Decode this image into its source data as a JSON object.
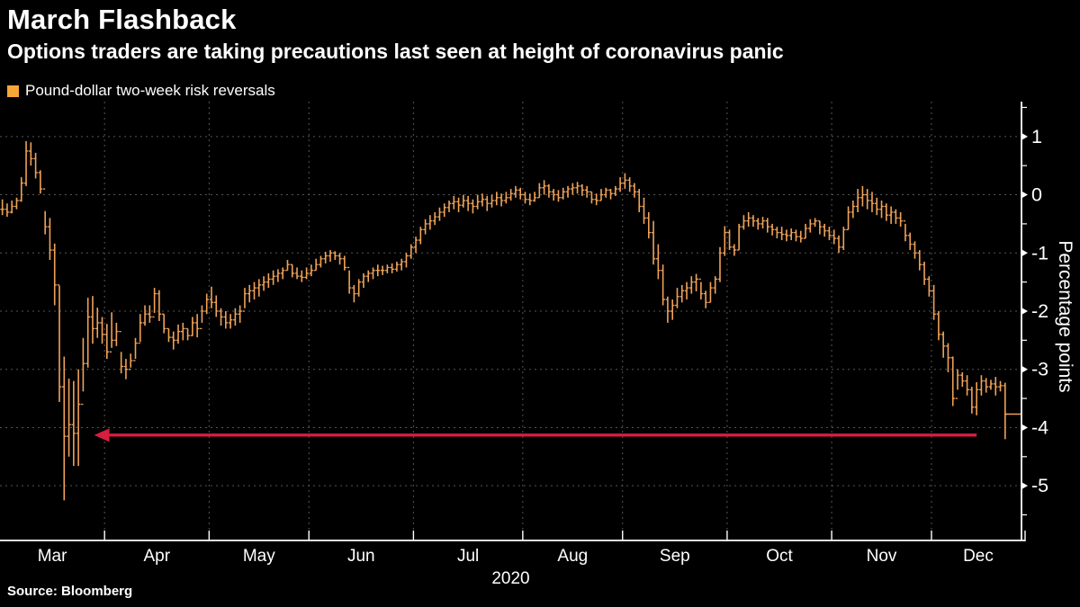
{
  "header": {
    "title": "March Flashback",
    "subtitle": "Options traders are taking precautions last seen at height of coronavirus panic"
  },
  "legend": {
    "label": "Pound-dollar two-week risk reversals",
    "swatch_color": "#f5a738"
  },
  "source": "Source: Bloomberg",
  "chart_data": {
    "type": "ohlc_bar",
    "title": "March Flashback",
    "series_name": "Pound-dollar two-week risk reversals",
    "series_color": "#f0a258",
    "background_color": "#000000",
    "grid_color": "#555555",
    "axis_color": "#ffffff",
    "x_axis": {
      "months": [
        "Mar",
        "Apr",
        "May",
        "Jun",
        "Jul",
        "Aug",
        "Sep",
        "Oct",
        "Nov",
        "Dec"
      ],
      "year_label": "2020",
      "month_start_indices": [
        0,
        22,
        44,
        65,
        87,
        110,
        131,
        153,
        175,
        196
      ],
      "axis_end_index": 215.7
    },
    "y_axis": {
      "label": "Percentage points",
      "major_ticks": [
        1,
        0,
        -1,
        -2,
        -3,
        -4,
        -5
      ],
      "minor_tick_step": 0.5,
      "top_value": 1.6,
      "bottom_value": -5.94
    },
    "annotation_arrow": {
      "color": "#d81e3f",
      "value": -4.13,
      "from_index": 205,
      "tip_index": 19.3
    },
    "last_value_line": {
      "value": -3.77
    },
    "bars_format": [
      "high",
      "low",
      "close"
    ],
    "bars": [
      [
        -0.08,
        -0.35,
        -0.25
      ],
      [
        -0.15,
        -0.38,
        -0.3
      ],
      [
        -0.1,
        -0.32,
        -0.2
      ],
      [
        -0.05,
        -0.25,
        -0.1
      ],
      [
        0.3,
        -0.12,
        0.2
      ],
      [
        0.92,
        0.15,
        0.75
      ],
      [
        0.9,
        0.5,
        0.62
      ],
      [
        0.72,
        0.28,
        0.38
      ],
      [
        0.42,
        0.02,
        0.1
      ],
      [
        -0.28,
        -0.68,
        -0.55
      ],
      [
        -0.4,
        -1.12,
        -0.95
      ],
      [
        -0.84,
        -1.9,
        -1.55
      ],
      [
        -1.56,
        -3.56,
        -3.3
      ],
      [
        -2.78,
        -5.25,
        -4.15
      ],
      [
        -3.16,
        -4.5,
        -3.95
      ],
      [
        -3.2,
        -4.66,
        -4.1
      ],
      [
        -3.0,
        -4.66,
        -3.6
      ],
      [
        -2.46,
        -3.38,
        -2.9
      ],
      [
        -1.77,
        -2.97,
        -2.1
      ],
      [
        -1.74,
        -2.56,
        -2.3
      ],
      [
        -1.94,
        -2.46,
        -2.2
      ],
      [
        -2.1,
        -2.56,
        -2.4
      ],
      [
        -2.22,
        -2.82,
        -2.7
      ],
      [
        -2.02,
        -2.63,
        -2.5
      ],
      [
        -2.2,
        -2.6,
        -2.35
      ],
      [
        -2.7,
        -3.07,
        -2.95
      ],
      [
        -2.82,
        -3.17,
        -3.0
      ],
      [
        -2.73,
        -2.97,
        -2.85
      ],
      [
        -2.46,
        -2.82,
        -2.55
      ],
      [
        -2.05,
        -2.53,
        -2.2
      ],
      [
        -1.9,
        -2.25,
        -2.05
      ],
      [
        -1.9,
        -2.2,
        -2.1
      ],
      [
        -1.6,
        -2.03,
        -1.7
      ],
      [
        -1.64,
        -2.17,
        -2.05
      ],
      [
        -2.05,
        -2.38,
        -2.3
      ],
      [
        -2.3,
        -2.53,
        -2.45
      ],
      [
        -2.35,
        -2.66,
        -2.5
      ],
      [
        -2.23,
        -2.56,
        -2.35
      ],
      [
        -2.2,
        -2.5,
        -2.3
      ],
      [
        -2.3,
        -2.5,
        -2.42
      ],
      [
        -2.1,
        -2.43,
        -2.2
      ],
      [
        -2.05,
        -2.45,
        -2.3
      ],
      [
        -1.9,
        -2.2,
        -2.0
      ],
      [
        -1.7,
        -2.05,
        -1.8
      ],
      [
        -1.58,
        -1.95,
        -1.85
      ],
      [
        -1.73,
        -2.1,
        -2.0
      ],
      [
        -1.95,
        -2.25,
        -2.1
      ],
      [
        -2.0,
        -2.3,
        -2.2
      ],
      [
        -2.05,
        -2.3,
        -2.15
      ],
      [
        -1.95,
        -2.25,
        -2.05
      ],
      [
        -1.9,
        -2.2,
        -2.0
      ],
      [
        -1.6,
        -1.95,
        -1.7
      ],
      [
        -1.55,
        -1.85,
        -1.65
      ],
      [
        -1.5,
        -1.8,
        -1.6
      ],
      [
        -1.45,
        -1.75,
        -1.55
      ],
      [
        -1.4,
        -1.65,
        -1.5
      ],
      [
        -1.35,
        -1.6,
        -1.45
      ],
      [
        -1.3,
        -1.55,
        -1.4
      ],
      [
        -1.28,
        -1.5,
        -1.35
      ],
      [
        -1.25,
        -1.45,
        -1.3
      ],
      [
        -1.12,
        -1.3,
        -1.2
      ],
      [
        -1.2,
        -1.42,
        -1.35
      ],
      [
        -1.25,
        -1.45,
        -1.4
      ],
      [
        -1.3,
        -1.5,
        -1.42
      ],
      [
        -1.25,
        -1.45,
        -1.35
      ],
      [
        -1.2,
        -1.4,
        -1.3
      ],
      [
        -1.1,
        -1.3,
        -1.2
      ],
      [
        -1.05,
        -1.25,
        -1.1
      ],
      [
        -0.98,
        -1.18,
        -1.05
      ],
      [
        -0.95,
        -1.15,
        -1.0
      ],
      [
        -0.97,
        -1.12,
        -1.05
      ],
      [
        -1.0,
        -1.2,
        -1.1
      ],
      [
        -1.05,
        -1.3,
        -1.25
      ],
      [
        -1.3,
        -1.7,
        -1.6
      ],
      [
        -1.55,
        -1.85,
        -1.7
      ],
      [
        -1.45,
        -1.75,
        -1.5
      ],
      [
        -1.35,
        -1.6,
        -1.4
      ],
      [
        -1.3,
        -1.5,
        -1.35
      ],
      [
        -1.25,
        -1.45,
        -1.3
      ],
      [
        -1.2,
        -1.4,
        -1.3
      ],
      [
        -1.22,
        -1.38,
        -1.3
      ],
      [
        -1.2,
        -1.35,
        -1.25
      ],
      [
        -1.18,
        -1.35,
        -1.28
      ],
      [
        -1.15,
        -1.32,
        -1.2
      ],
      [
        -1.1,
        -1.3,
        -1.15
      ],
      [
        -1.0,
        -1.25,
        -1.05
      ],
      [
        -0.85,
        -1.1,
        -0.9
      ],
      [
        -0.72,
        -1.0,
        -0.78
      ],
      [
        -0.55,
        -0.85,
        -0.6
      ],
      [
        -0.42,
        -0.68,
        -0.5
      ],
      [
        -0.35,
        -0.6,
        -0.45
      ],
      [
        -0.3,
        -0.52,
        -0.38
      ],
      [
        -0.22,
        -0.45,
        -0.3
      ],
      [
        -0.15,
        -0.38,
        -0.22
      ],
      [
        -0.1,
        -0.3,
        -0.15
      ],
      [
        -0.02,
        -0.25,
        -0.12
      ],
      [
        -0.05,
        -0.3,
        -0.18
      ],
      [
        0.0,
        -0.22,
        -0.1
      ],
      [
        -0.02,
        -0.28,
        -0.15
      ],
      [
        -0.08,
        -0.32,
        -0.2
      ],
      [
        0.0,
        -0.25,
        -0.12
      ],
      [
        0.02,
        -0.2,
        -0.08
      ],
      [
        -0.02,
        -0.28,
        -0.15
      ],
      [
        0.0,
        -0.22,
        -0.1
      ],
      [
        0.05,
        -0.18,
        -0.05
      ],
      [
        0.02,
        -0.2,
        -0.1
      ],
      [
        0.05,
        -0.15,
        -0.05
      ],
      [
        0.1,
        -0.1,
        0.02
      ],
      [
        0.15,
        -0.05,
        0.08
      ],
      [
        0.12,
        -0.08,
        0.0
      ],
      [
        0.05,
        -0.15,
        -0.08
      ],
      [
        0.02,
        -0.18,
        -0.1
      ],
      [
        0.05,
        -0.12,
        -0.05
      ],
      [
        0.2,
        -0.05,
        0.12
      ],
      [
        0.25,
        0.0,
        0.15
      ],
      [
        0.18,
        -0.05,
        0.05
      ],
      [
        0.1,
        -0.1,
        0.0
      ],
      [
        0.08,
        -0.12,
        -0.05
      ],
      [
        0.12,
        -0.08,
        0.05
      ],
      [
        0.15,
        -0.05,
        0.1
      ],
      [
        0.2,
        0.0,
        0.12
      ],
      [
        0.22,
        0.02,
        0.15
      ],
      [
        0.18,
        -0.02,
        0.08
      ],
      [
        0.15,
        -0.05,
        0.05
      ],
      [
        0.05,
        -0.15,
        -0.08
      ],
      [
        0.02,
        -0.18,
        -0.1
      ],
      [
        0.1,
        -0.1,
        0.0
      ],
      [
        0.12,
        -0.05,
        0.08
      ],
      [
        0.1,
        -0.08,
        0.02
      ],
      [
        0.15,
        -0.02,
        0.1
      ],
      [
        0.3,
        0.05,
        0.2
      ],
      [
        0.37,
        0.1,
        0.25
      ],
      [
        0.3,
        0.05,
        0.15
      ],
      [
        0.2,
        -0.05,
        0.05
      ],
      [
        0.1,
        -0.3,
        -0.2
      ],
      [
        -0.05,
        -0.5,
        -0.4
      ],
      [
        -0.3,
        -0.75,
        -0.65
      ],
      [
        -0.45,
        -1.2,
        -1.1
      ],
      [
        -0.85,
        -1.45,
        -1.3
      ],
      [
        -1.2,
        -1.9,
        -1.8
      ],
      [
        -1.75,
        -2.2,
        -2.0
      ],
      [
        -1.8,
        -2.15,
        -1.9
      ],
      [
        -1.6,
        -1.95,
        -1.75
      ],
      [
        -1.55,
        -1.85,
        -1.65
      ],
      [
        -1.5,
        -1.8,
        -1.6
      ],
      [
        -1.4,
        -1.7,
        -1.5
      ],
      [
        -1.36,
        -1.66,
        -1.45
      ],
      [
        -1.5,
        -1.8,
        -1.7
      ],
      [
        -1.65,
        -1.95,
        -1.85
      ],
      [
        -1.5,
        -1.85,
        -1.6
      ],
      [
        -1.4,
        -1.7,
        -1.45
      ],
      [
        -0.9,
        -1.5,
        -1.0
      ],
      [
        -0.54,
        -1.05,
        -0.65
      ],
      [
        -0.6,
        -0.95,
        -0.9
      ],
      [
        -0.85,
        -1.05,
        -0.95
      ],
      [
        -0.5,
        -0.95,
        -0.55
      ],
      [
        -0.35,
        -0.6,
        -0.45
      ],
      [
        -0.3,
        -0.55,
        -0.4
      ],
      [
        -0.35,
        -0.55,
        -0.45
      ],
      [
        -0.4,
        -0.6,
        -0.5
      ],
      [
        -0.38,
        -0.58,
        -0.45
      ],
      [
        -0.4,
        -0.65,
        -0.55
      ],
      [
        -0.5,
        -0.7,
        -0.6
      ],
      [
        -0.55,
        -0.75,
        -0.65
      ],
      [
        -0.55,
        -0.78,
        -0.68
      ],
      [
        -0.6,
        -0.8,
        -0.7
      ],
      [
        -0.58,
        -0.78,
        -0.65
      ],
      [
        -0.6,
        -0.8,
        -0.72
      ],
      [
        -0.62,
        -0.82,
        -0.75
      ],
      [
        -0.5,
        -0.75,
        -0.58
      ],
      [
        -0.42,
        -0.65,
        -0.5
      ],
      [
        -0.4,
        -0.55,
        -0.45
      ],
      [
        -0.45,
        -0.68,
        -0.55
      ],
      [
        -0.5,
        -0.72,
        -0.62
      ],
      [
        -0.55,
        -0.78,
        -0.7
      ],
      [
        -0.6,
        -0.85,
        -0.75
      ],
      [
        -0.7,
        -1.0,
        -0.9
      ],
      [
        -0.55,
        -0.95,
        -0.6
      ],
      [
        -0.2,
        -0.6,
        -0.3
      ],
      [
        -0.1,
        -0.4,
        -0.2
      ],
      [
        0.1,
        -0.3,
        -0.05
      ],
      [
        0.15,
        -0.2,
        0.0
      ],
      [
        0.1,
        -0.25,
        -0.1
      ],
      [
        0.05,
        -0.3,
        -0.15
      ],
      [
        -0.05,
        -0.35,
        -0.25
      ],
      [
        -0.1,
        -0.4,
        -0.2
      ],
      [
        -0.15,
        -0.45,
        -0.35
      ],
      [
        -0.2,
        -0.5,
        -0.3
      ],
      [
        -0.25,
        -0.5,
        -0.4
      ],
      [
        -0.3,
        -0.55,
        -0.45
      ],
      [
        -0.5,
        -0.8,
        -0.7
      ],
      [
        -0.65,
        -0.95,
        -0.85
      ],
      [
        -0.8,
        -1.1,
        -1.0
      ],
      [
        -0.95,
        -1.3,
        -1.2
      ],
      [
        -1.15,
        -1.55,
        -1.45
      ],
      [
        -1.4,
        -1.75,
        -1.65
      ],
      [
        -1.55,
        -2.15,
        -2.05
      ],
      [
        -2.0,
        -2.5,
        -2.4
      ],
      [
        -2.35,
        -2.8,
        -2.6
      ],
      [
        -2.55,
        -3.05,
        -2.8
      ],
      [
        -2.78,
        -3.63,
        -3.5
      ],
      [
        -3.0,
        -3.35,
        -3.1
      ],
      [
        -3.05,
        -3.3,
        -3.2
      ],
      [
        -3.1,
        -3.45,
        -3.35
      ],
      [
        -3.3,
        -3.76,
        -3.65
      ],
      [
        -3.22,
        -3.79,
        -3.35
      ],
      [
        -3.1,
        -3.45,
        -3.2
      ],
      [
        -3.15,
        -3.4,
        -3.3
      ],
      [
        -3.18,
        -3.35,
        -3.25
      ],
      [
        -3.13,
        -3.45,
        -3.3
      ],
      [
        -3.2,
        -3.38,
        -3.28
      ],
      [
        -3.23,
        -4.2,
        -3.77
      ]
    ]
  }
}
